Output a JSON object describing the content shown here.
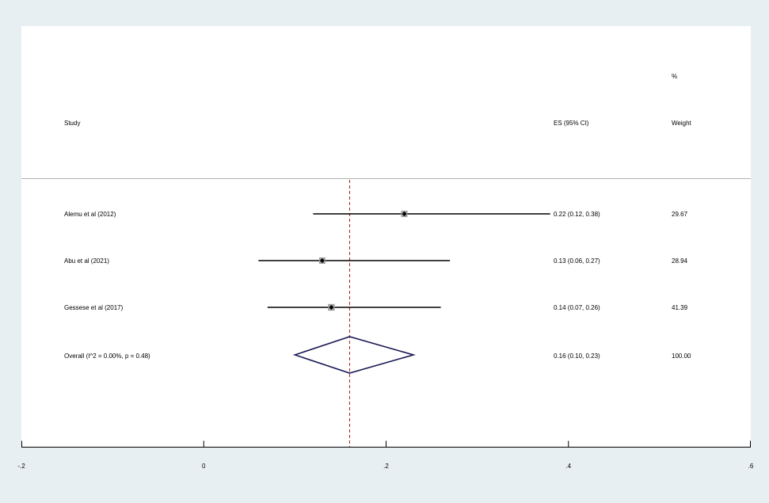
{
  "chart_data": {
    "type": "forest",
    "columns": {
      "study": "Study",
      "es": "ES (95% CI)",
      "weight_top": "%",
      "weight": "Weight"
    },
    "studies": [
      {
        "label": "Alemu et al (2012)",
        "es": 0.22,
        "lower": 0.12,
        "upper": 0.38,
        "es_text": "0.22 (0.12, 0.38)",
        "weight": 29.67,
        "weight_text": "29.67"
      },
      {
        "label": "Abu et al (2021)",
        "es": 0.13,
        "lower": 0.06,
        "upper": 0.27,
        "es_text": "0.13 (0.06, 0.27)",
        "weight": 28.94,
        "weight_text": "28.94"
      },
      {
        "label": "Gessese et al (2017)",
        "es": 0.14,
        "lower": 0.07,
        "upper": 0.26,
        "es_text": "0.14 (0.07, 0.26)",
        "weight": 41.39,
        "weight_text": "41.39"
      }
    ],
    "overall": {
      "label": "Overall  (I^2 = 0.00%, p = 0.48)",
      "es": 0.16,
      "lower": 0.1,
      "upper": 0.23,
      "es_text": "0.16 (0.10, 0.23)",
      "weight_text": "100.00"
    },
    "x_ticks": [
      -0.2,
      0,
      0.2,
      0.4,
      0.6
    ],
    "x_tick_labels": [
      "-.2",
      "0",
      ".2",
      ".4",
      ".6"
    ],
    "xlim": [
      -0.2,
      0.6
    ],
    "colors": {
      "ci_line": "#000000",
      "weight_box": "#a0a0a0",
      "diamond": "#1a1a55",
      "overall_line": "#a02020",
      "separator": "#b0b0b0"
    }
  }
}
